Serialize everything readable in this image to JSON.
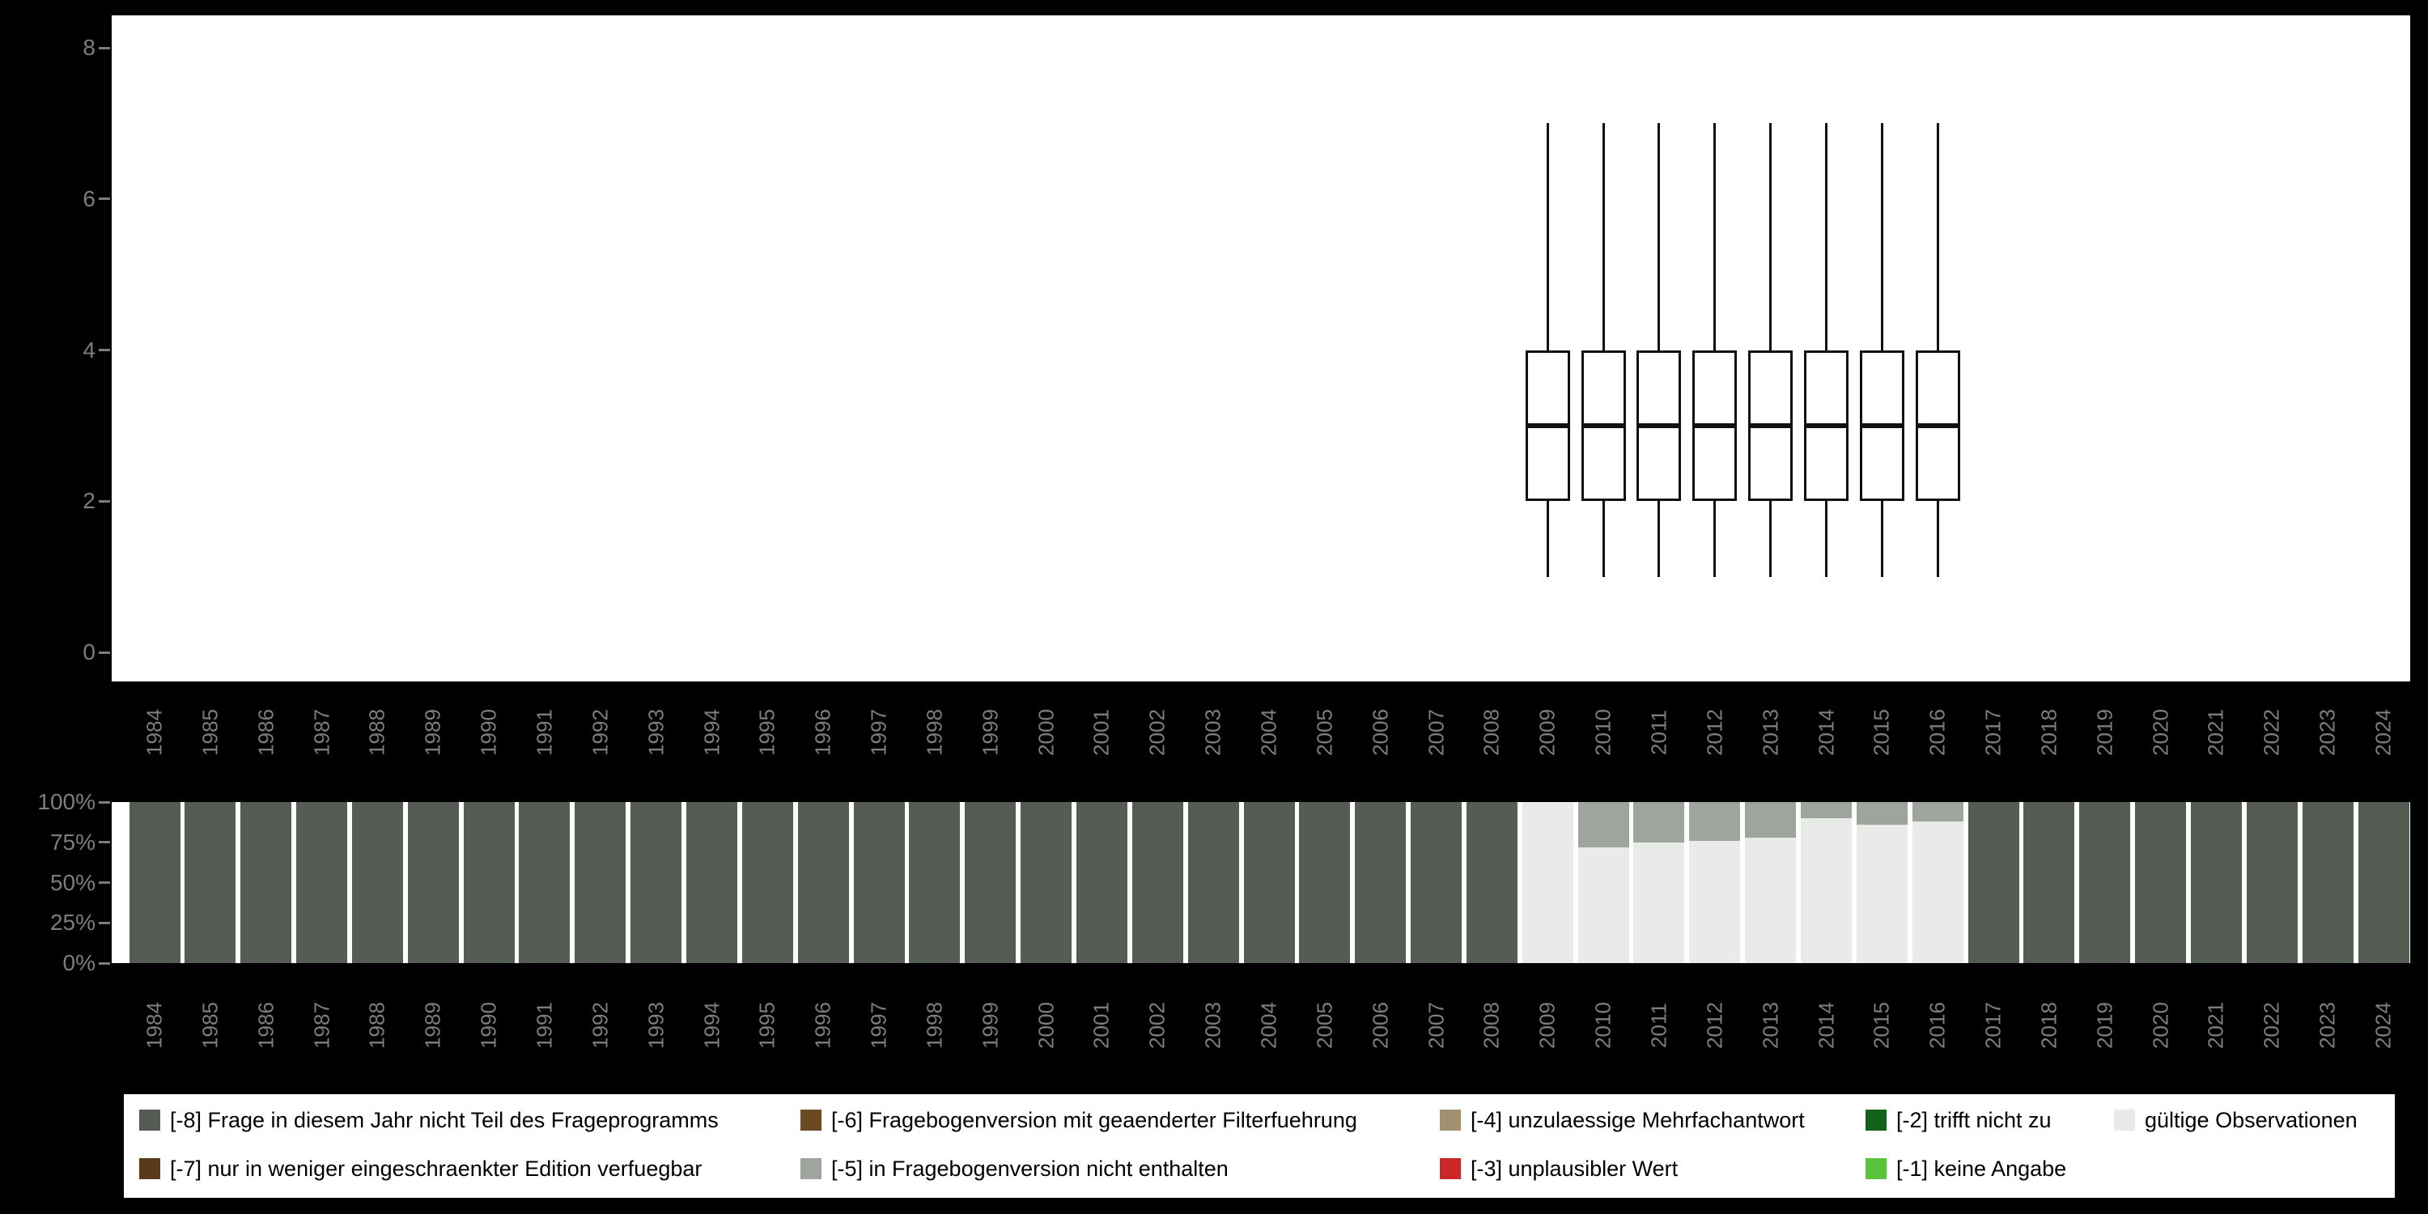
{
  "page": {
    "background_color": "#000000",
    "panel_color": "#ffffff",
    "axis_text_color": "#7d7d7d"
  },
  "years": [
    "1984",
    "1985",
    "1986",
    "1987",
    "1988",
    "1989",
    "1990",
    "1991",
    "1992",
    "1993",
    "1994",
    "1995",
    "1996",
    "1997",
    "1998",
    "1999",
    "2000",
    "2001",
    "2002",
    "2003",
    "2004",
    "2005",
    "2006",
    "2007",
    "2008",
    "2009",
    "2010",
    "2011",
    "2012",
    "2013",
    "2014",
    "2015",
    "2016",
    "2017",
    "2018",
    "2019",
    "2020",
    "2021",
    "2022",
    "2023",
    "2024"
  ],
  "chart_data": [
    {
      "type": "boxplot",
      "title": "",
      "xlabel": "",
      "ylabel": "",
      "ylim": [
        0,
        8
      ],
      "yticks": [
        "0",
        "2",
        "4",
        "6",
        "8"
      ],
      "grid": false,
      "boxes": [
        {
          "x": "2009",
          "whisker_low": 1,
          "q1": 2,
          "median": 3,
          "q3": 4,
          "whisker_high": 7
        },
        {
          "x": "2010",
          "whisker_low": 1,
          "q1": 2,
          "median": 3,
          "q3": 4,
          "whisker_high": 7
        },
        {
          "x": "2011",
          "whisker_low": 1,
          "q1": 2,
          "median": 3,
          "q3": 4,
          "whisker_high": 7
        },
        {
          "x": "2012",
          "whisker_low": 1,
          "q1": 2,
          "median": 3,
          "q3": 4,
          "whisker_high": 7
        },
        {
          "x": "2013",
          "whisker_low": 1,
          "q1": 2,
          "median": 3,
          "q3": 4,
          "whisker_high": 7
        },
        {
          "x": "2014",
          "whisker_low": 1,
          "q1": 2,
          "median": 3,
          "q3": 4,
          "whisker_high": 7
        },
        {
          "x": "2015",
          "whisker_low": 1,
          "q1": 2,
          "median": 3,
          "q3": 4,
          "whisker_high": 7
        },
        {
          "x": "2016",
          "whisker_low": 1,
          "q1": 2,
          "median": 3,
          "q3": 4,
          "whisker_high": 7
        }
      ]
    },
    {
      "type": "bar",
      "stacked": true,
      "unit": "percent",
      "title": "",
      "xlabel": "",
      "ylabel": "",
      "ylim": [
        0,
        100
      ],
      "yticks": [
        "0%",
        "25%",
        "50%",
        "75%",
        "100%"
      ],
      "grid": false,
      "categories": [
        "1984",
        "1985",
        "1986",
        "1987",
        "1988",
        "1989",
        "1990",
        "1991",
        "1992",
        "1993",
        "1994",
        "1995",
        "1996",
        "1997",
        "1998",
        "1999",
        "2000",
        "2001",
        "2002",
        "2003",
        "2004",
        "2005",
        "2006",
        "2007",
        "2008",
        "2009",
        "2010",
        "2011",
        "2012",
        "2013",
        "2014",
        "2015",
        "2016",
        "2017",
        "2018",
        "2019",
        "2020",
        "2021",
        "2022",
        "2023",
        "2024"
      ],
      "series": [
        {
          "name": "[-8] Frage in diesem Jahr nicht Teil des Frageprogramms",
          "color": "#545c54",
          "values": [
            100,
            100,
            100,
            100,
            100,
            100,
            100,
            100,
            100,
            100,
            100,
            100,
            100,
            100,
            100,
            100,
            100,
            100,
            100,
            100,
            100,
            100,
            100,
            100,
            100,
            0,
            0,
            0,
            0,
            0,
            0,
            0,
            0,
            100,
            100,
            100,
            100,
            100,
            100,
            100,
            100
          ]
        },
        {
          "name": "gültige Observationen",
          "color": "#e8ebe8",
          "values": [
            0,
            0,
            0,
            0,
            0,
            0,
            0,
            0,
            0,
            0,
            0,
            0,
            0,
            0,
            0,
            0,
            0,
            0,
            0,
            0,
            0,
            0,
            0,
            0,
            0,
            100,
            72,
            75,
            76,
            78,
            90,
            86,
            88,
            0,
            0,
            0,
            0,
            0,
            0,
            0,
            0
          ]
        },
        {
          "name": "[-5] in Fragebogenversion nicht enthalten",
          "color": "#9da59d",
          "values": [
            0,
            0,
            0,
            0,
            0,
            0,
            0,
            0,
            0,
            0,
            0,
            0,
            0,
            0,
            0,
            0,
            0,
            0,
            0,
            0,
            0,
            0,
            0,
            0,
            0,
            0,
            28,
            25,
            24,
            22,
            10,
            14,
            12,
            0,
            0,
            0,
            0,
            0,
            0,
            0,
            0
          ]
        }
      ]
    }
  ],
  "legend": {
    "items": [
      {
        "label": "[-8] Frage in diesem Jahr nicht Teil des Frageprogramms",
        "color": "#545c54"
      },
      {
        "label": "[-6] Fragebogenversion mit geaenderter Filterfuehrung",
        "color": "#6b4a1f"
      },
      {
        "label": "[-4] unzulaessige Mehrfachantwort",
        "color": "#a3906e"
      },
      {
        "label": "[-2] trifft nicht zu",
        "color": "#14611a"
      },
      {
        "label": "gültige Observationen",
        "color": "#e8ebe8"
      },
      {
        "label": "[-7] nur in weniger eingeschraenkter Edition verfuegbar",
        "color": "#5a3a1c"
      },
      {
        "label": "[-5] in Fragebogenversion nicht enthalten",
        "color": "#9da59d"
      },
      {
        "label": "[-3] unplausibler Wert",
        "color": "#cd2626"
      },
      {
        "label": "[-1] keine Angabe",
        "color": "#57c43c"
      }
    ]
  }
}
